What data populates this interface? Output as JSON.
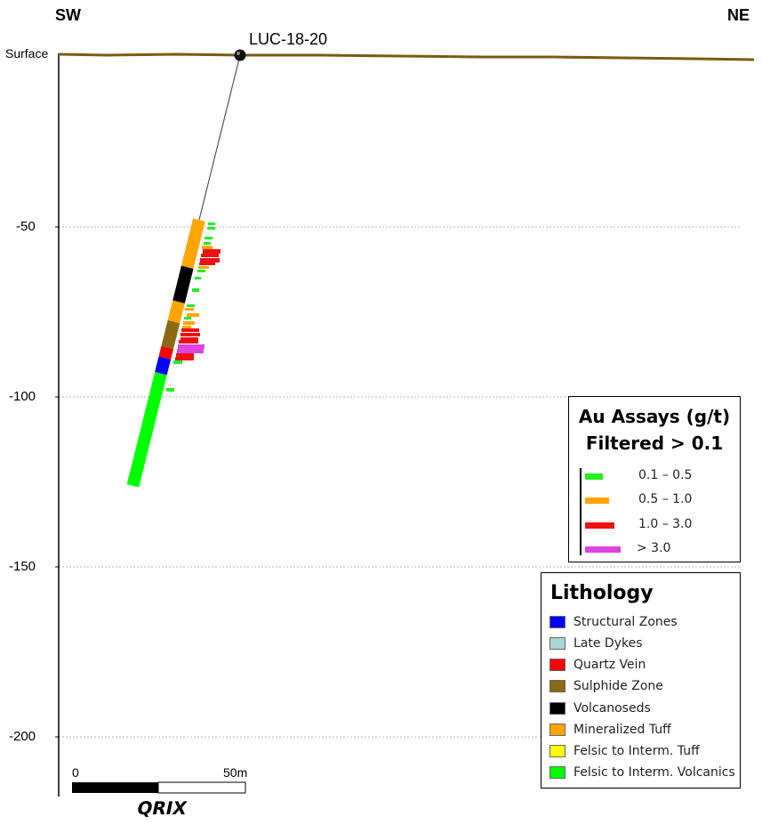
{
  "orientation": {
    "left": "SW",
    "right": "NE"
  },
  "surface_label": "Surface",
  "hole": {
    "name": "LUC-18-20"
  },
  "depth_axis": {
    "ticks": [
      {
        "value": -50,
        "label": "-50"
      },
      {
        "value": -100,
        "label": "-100"
      },
      {
        "value": -150,
        "label": "-150"
      },
      {
        "value": -200,
        "label": "-200"
      }
    ]
  },
  "assay_legend": {
    "title_line1": "Au Assays (g/t)",
    "title_line2": "Filtered > 0.1",
    "items": [
      {
        "label": "0.1 – 0.5",
        "color": "#22ee22"
      },
      {
        "label": "0.5 – 1.0",
        "color": "#ffa500"
      },
      {
        "label": "1.0 – 3.0",
        "color": "#ee1111"
      },
      {
        "label": "> 3.0",
        "color": "#dd44dd"
      }
    ]
  },
  "lithology_legend": {
    "title": "Lithology",
    "items": [
      {
        "label": "Structural Zones",
        "color": "#0000ff"
      },
      {
        "label": "Late Dykes",
        "color": "#a8d8d8"
      },
      {
        "label": "Quartz Vein",
        "color": "#ff0000"
      },
      {
        "label": "Sulphide Zone",
        "color": "#8b6914"
      },
      {
        "label": "Volcanoseds",
        "color": "#000000"
      },
      {
        "label": "Mineralized Tuff",
        "color": "#ffa500"
      },
      {
        "label": "Felsic to Interm. Tuff",
        "color": "#ffff00"
      },
      {
        "label": "Felsic to Interm. Volcanics",
        "color": "#00ff00"
      }
    ]
  },
  "scale_bar": {
    "start_label": "0",
    "end_label": "50m"
  },
  "logo_text": "QRIX",
  "colors": {
    "surface_line": "#7a5c10",
    "grid": "#bbbbbb"
  }
}
